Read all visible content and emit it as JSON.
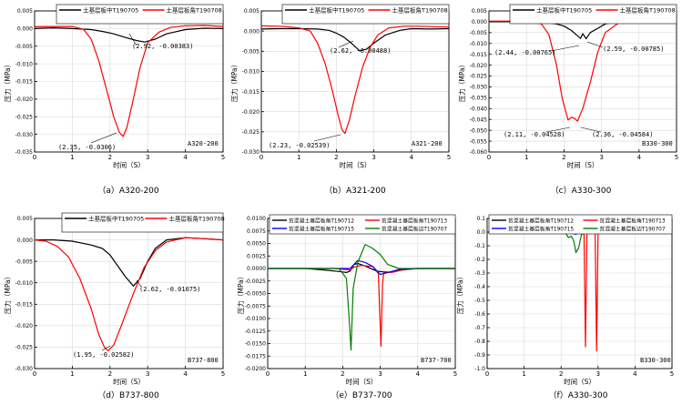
{
  "chart_data": [
    {
      "id": "a",
      "type": "line",
      "caption": "（a）A320-200",
      "tag": "A320-200",
      "xlabel": "时间（S）",
      "ylabel": "压力（MPa）",
      "xlim": [
        0,
        5
      ],
      "ylim": [
        -0.035,
        0.005
      ],
      "xticks": [
        0,
        1,
        2,
        3,
        4,
        5
      ],
      "yticks": [
        0.005,
        0.0,
        -0.005,
        -0.01,
        -0.015,
        -0.02,
        -0.025,
        -0.03,
        -0.035
      ],
      "ytick_labels": [
        "0.005",
        "0.000",
        "-0.005",
        "-0.010",
        "-0.015",
        "-0.020",
        "-0.025",
        "-0.030",
        "-0.035"
      ],
      "legend": [
        "土基层板中T190705",
        "土基层板角T190708"
      ],
      "series": [
        {
          "name": "土基层板中T190705",
          "color": "#000000",
          "x": [
            0,
            0.5,
            1.0,
            1.5,
            1.8,
            2.1,
            2.4,
            2.7,
            2.92,
            3.2,
            3.5,
            4.0,
            4.5,
            5.0
          ],
          "y": [
            0.0,
            0.0002,
            0.0,
            -0.0003,
            -0.0008,
            -0.0015,
            -0.0025,
            -0.0034,
            -0.00383,
            -0.003,
            -0.0015,
            -0.0003,
            0.0001,
            0.0
          ]
        },
        {
          "name": "土基层板角T190708",
          "color": "#ff0000",
          "x": [
            0,
            0.5,
            1.0,
            1.3,
            1.5,
            1.7,
            1.9,
            2.1,
            2.25,
            2.35,
            2.45,
            2.6,
            2.8,
            3.0,
            3.3,
            3.6,
            4.0,
            4.5,
            5.0
          ],
          "y": [
            0.0005,
            0.0006,
            0.0006,
            -0.0002,
            -0.003,
            -0.009,
            -0.017,
            -0.025,
            -0.0295,
            -0.0306,
            -0.028,
            -0.021,
            -0.011,
            -0.004,
            -0.001,
            0.0003,
            0.0008,
            0.0009,
            0.0006
          ]
        }
      ],
      "annotations": [
        {
          "text": "(2.92, -0.00383)",
          "x": 2.92,
          "y": -0.00383
        },
        {
          "text": "(2.35, -0.0306)",
          "x": 2.35,
          "y": -0.0306
        }
      ]
    },
    {
      "id": "b",
      "type": "line",
      "caption": "（b）A321-200",
      "tag": "A321-200",
      "xlabel": "时间（S）",
      "ylabel": "压力（MPa）",
      "xlim": [
        0,
        5
      ],
      "ylim": [
        -0.03,
        0.005
      ],
      "xticks": [
        0,
        1,
        2,
        3,
        4,
        5
      ],
      "yticks": [
        0.005,
        0.0,
        -0.005,
        -0.01,
        -0.015,
        -0.02,
        -0.025,
        -0.03
      ],
      "ytick_labels": [
        "0.005",
        "0.000",
        "-0.005",
        "-0.010",
        "-0.015",
        "-0.020",
        "-0.025",
        "-0.030"
      ],
      "legend": [
        "土基层板中T190705",
        "土基层板角T190708"
      ],
      "series": [
        {
          "name": "土基层板中T190705",
          "color": "#000000",
          "x": [
            0,
            0.5,
            1.0,
            1.5,
            1.8,
            2.0,
            2.2,
            2.4,
            2.62,
            2.8,
            3.0,
            3.3,
            3.7,
            4.0,
            4.5,
            5.0
          ],
          "y": [
            0.0005,
            0.0006,
            0.0006,
            0.0005,
            0.0002,
            -0.0005,
            -0.0015,
            -0.003,
            -0.00488,
            -0.0045,
            -0.003,
            -0.001,
            0.0002,
            0.0006,
            0.0005,
            0.0006
          ]
        },
        {
          "name": "土基层板角T190708",
          "color": "#ff0000",
          "x": [
            0,
            0.5,
            1.0,
            1.3,
            1.5,
            1.7,
            1.9,
            2.05,
            2.15,
            2.23,
            2.35,
            2.5,
            2.7,
            2.9,
            3.1,
            3.4,
            3.8,
            4.2,
            4.6,
            5.0
          ],
          "y": [
            0.0013,
            0.0012,
            0.0008,
            0.0,
            -0.003,
            -0.008,
            -0.015,
            -0.021,
            -0.0245,
            -0.02539,
            -0.022,
            -0.016,
            -0.009,
            -0.004,
            -0.001,
            0.0008,
            0.0012,
            0.0012,
            0.0011,
            0.001
          ]
        }
      ],
      "annotations": [
        {
          "text": "(2.62, -0.00488)",
          "x": 2.62,
          "y": -0.00488
        },
        {
          "text": "(2.23, -0.02539)",
          "x": 2.23,
          "y": -0.02539
        }
      ]
    },
    {
      "id": "c",
      "type": "line",
      "caption": "（c）A330-300",
      "tag": "B330-300",
      "xlabel": "时间（S）",
      "ylabel": "压力（MPa）",
      "xlim": [
        0,
        5
      ],
      "ylim": [
        -0.06,
        0.005
      ],
      "xticks": [
        0,
        1,
        2,
        3,
        4,
        5
      ],
      "yticks": [
        0.005,
        0.0,
        -0.005,
        -0.01,
        -0.015,
        -0.02,
        -0.025,
        -0.03,
        -0.035,
        -0.04,
        -0.045,
        -0.05,
        -0.055,
        -0.06
      ],
      "ytick_labels": [
        "0.005",
        "0.000",
        "-0.005",
        "-0.010",
        "-0.015",
        "-0.020",
        "-0.025",
        "-0.030",
        "-0.035",
        "-0.040",
        "-0.045",
        "-0.050",
        "-0.055",
        "-0.060"
      ],
      "legend": [
        "土基层板中T190705",
        "土基层板角T190708"
      ],
      "series": [
        {
          "name": "土基层板中T190705",
          "color": "#000000",
          "x": [
            0,
            1.0,
            1.5,
            1.8,
            2.0,
            2.2,
            2.44,
            2.5,
            2.59,
            2.7,
            2.9,
            3.1,
            3.4,
            4.0,
            5.0
          ],
          "y": [
            0.0,
            0.0,
            -0.0003,
            -0.001,
            -0.002,
            -0.004,
            -0.00765,
            -0.0055,
            -0.00785,
            -0.005,
            -0.003,
            -0.001,
            0.0,
            0.0,
            0.0
          ]
        },
        {
          "name": "土基层板角T190708",
          "color": "#ff0000",
          "x": [
            0,
            1.0,
            1.4,
            1.6,
            1.8,
            1.95,
            2.11,
            2.2,
            2.28,
            2.36,
            2.5,
            2.7,
            2.9,
            3.1,
            3.5,
            4.0,
            5.0
          ],
          "y": [
            0.0003,
            0.0003,
            -0.001,
            -0.006,
            -0.02,
            -0.035,
            -0.04528,
            -0.044,
            -0.0445,
            -0.04584,
            -0.04,
            -0.028,
            -0.014,
            -0.005,
            0.0,
            0.0003,
            0.0003
          ]
        }
      ],
      "annotations": [
        {
          "text": "(2.44, -0.00765)",
          "x": 2.44,
          "y": -0.00765
        },
        {
          "text": "(2.59, -0.00785)",
          "x": 2.59,
          "y": -0.00785
        },
        {
          "text": "(2.11, -0.04528)",
          "x": 2.11,
          "y": -0.04528
        },
        {
          "text": "(2.36, -0.04584)",
          "x": 2.36,
          "y": -0.04584
        }
      ]
    },
    {
      "id": "d",
      "type": "line",
      "caption": "（d）B737-800",
      "tag": "B737-800",
      "xlabel": "时间（S）",
      "ylabel": "压力（MPa）",
      "xlim": [
        0,
        5
      ],
      "ylim": [
        -0.03,
        0.005
      ],
      "xticks": [
        0,
        1,
        2,
        3,
        4,
        5
      ],
      "yticks": [
        0.005,
        0.0,
        -0.005,
        -0.01,
        -0.015,
        -0.02,
        -0.025,
        -0.03
      ],
      "ytick_labels": [
        "0.005",
        "0.000",
        "-0.005",
        "-0.010",
        "-0.015",
        "-0.020",
        "-0.025",
        "-0.030"
      ],
      "legend": [
        "土基层板中T190705",
        "土基层板角T190708"
      ],
      "series": [
        {
          "name": "土基层板中T190705",
          "color": "#000000",
          "x": [
            0,
            0.5,
            1.0,
            1.5,
            1.8,
            2.0,
            2.2,
            2.4,
            2.62,
            2.8,
            3.0,
            3.2,
            3.5,
            4.0,
            4.5,
            5.0
          ],
          "y": [
            0.0,
            0.0,
            -0.0003,
            -0.0012,
            -0.002,
            -0.0035,
            -0.006,
            -0.0085,
            -0.01075,
            -0.009,
            -0.005,
            -0.002,
            0.0,
            0.0005,
            0.0003,
            0.0
          ]
        },
        {
          "name": "土基层板角T190708",
          "color": "#ff0000",
          "x": [
            0,
            0.3,
            0.6,
            0.9,
            1.2,
            1.5,
            1.7,
            1.85,
            1.95,
            2.1,
            2.3,
            2.6,
            2.9,
            3.2,
            3.5,
            4.0,
            4.5,
            5.0
          ],
          "y": [
            0.0,
            -0.0003,
            -0.0015,
            -0.004,
            -0.009,
            -0.016,
            -0.022,
            -0.025,
            -0.02582,
            -0.0245,
            -0.02,
            -0.013,
            -0.0065,
            -0.0025,
            -0.0005,
            0.0005,
            0.0003,
            0.0
          ]
        }
      ],
      "annotations": [
        {
          "text": "(2.62, -0.01075)",
          "x": 2.62,
          "y": -0.01075
        },
        {
          "text": "(1.95, -0.02582)",
          "x": 1.95,
          "y": -0.02582
        }
      ]
    },
    {
      "id": "e",
      "type": "line",
      "caption": "（e）B737-700",
      "tag": "B737-700",
      "xlabel": "时间（S）",
      "ylabel": "压力（MPa）",
      "xlim": [
        0,
        5
      ],
      "ylim": [
        -0.02,
        0.01
      ],
      "xticks": [
        0,
        1,
        2,
        3,
        4,
        5
      ],
      "yticks": [
        0.01,
        0.0075,
        0.005,
        0.0025,
        0.0,
        -0.0025,
        -0.005,
        -0.0075,
        -0.01,
        -0.0125,
        -0.015,
        -0.0175,
        -0.02
      ],
      "ytick_labels": [
        "0.0100",
        "0.0075",
        "0.0050",
        "0.0025",
        "0.0000",
        "-0.0025",
        "-0.0050",
        "-0.0075",
        "-0.0100",
        "-0.0125",
        "-0.0150",
        "-0.0175",
        "-0.0200"
      ],
      "legend": [
        "贫混凝土基层板角T190712",
        "贫混凝土基层板角T190713",
        "贫混凝土基层板角T190715",
        "贫混凝土基层板边T190707"
      ],
      "series": [
        {
          "name": "贫混凝土基层板角T190712",
          "color": "#000000",
          "x": [
            0,
            1.0,
            1.5,
            1.9,
            2.1,
            2.2,
            2.3,
            2.4,
            2.6,
            2.9,
            3.2,
            3.6,
            4.0,
            5.0
          ],
          "y": [
            0.0,
            0.0,
            -0.0003,
            -0.0006,
            -0.0008,
            -0.0005,
            0.0008,
            0.001,
            0.0005,
            -0.0005,
            -0.0008,
            -0.0002,
            0.0,
            0.0
          ]
        },
        {
          "name": "贫混凝土基层板角T190713",
          "color": "#ff0000",
          "x": [
            0,
            1.0,
            1.8,
            2.2,
            2.3,
            2.5,
            2.8,
            2.95,
            3.02,
            3.06,
            3.1,
            3.3,
            3.6,
            4.0,
            5.0
          ],
          "y": [
            0.0,
            0.0,
            0.0,
            -0.0003,
            0.0003,
            0.0006,
            0.0004,
            -0.001,
            -0.0155,
            -0.003,
            -0.0006,
            -0.0008,
            -0.0003,
            0.0,
            0.0
          ]
        },
        {
          "name": "贫混凝土基层板角T190715",
          "color": "#0000ff",
          "x": [
            0,
            1.0,
            1.8,
            2.2,
            2.4,
            2.6,
            2.8,
            3.0,
            3.2,
            3.5,
            4.0,
            5.0
          ],
          "y": [
            0.0,
            0.0,
            0.0,
            0.0,
            0.0016,
            0.0012,
            0.0004,
            -0.0012,
            -0.0008,
            -0.0002,
            0.0,
            0.0
          ]
        },
        {
          "name": "贫混凝土基层板边T190707",
          "color": "#008000",
          "x": [
            0,
            1.0,
            1.9,
            2.1,
            2.18,
            2.22,
            2.28,
            2.4,
            2.6,
            2.8,
            3.0,
            3.2,
            3.5,
            4.0,
            5.0
          ],
          "y": [
            0.0,
            0.0,
            0.0,
            -0.002,
            -0.011,
            -0.0163,
            -0.004,
            0.0012,
            0.0048,
            0.004,
            0.0028,
            0.0008,
            0.0,
            0.0,
            0.0
          ]
        }
      ],
      "annotations": []
    },
    {
      "id": "f",
      "type": "line",
      "caption": "（f）A330-300",
      "tag": "B330-300",
      "xlabel": "时间（S）",
      "ylabel": "压力（MPa）",
      "xlim": [
        0,
        5
      ],
      "ylim": [
        -1.0,
        0.1
      ],
      "xticks": [
        0,
        1,
        2,
        3,
        4,
        5
      ],
      "yticks": [
        0.1,
        0.0,
        -0.1,
        -0.2,
        -0.3,
        -0.4,
        -0.5,
        -0.6,
        -0.7,
        -0.8,
        -0.9,
        -1.0
      ],
      "ytick_labels": [
        "0.1",
        "0.0",
        "-0.1",
        "-0.2",
        "-0.3",
        "-0.4",
        "-0.5",
        "-0.6",
        "-0.7",
        "-0.8",
        "-0.9",
        "-1.0"
      ],
      "legend": [
        "贫混凝土基层板角T190712",
        "贫混凝土基层板角T190713",
        "贫混凝土基层板角T190715",
        "贫混凝土基层板边T190707"
      ],
      "series": [
        {
          "name": "贫混凝土基层板角T190712",
          "color": "#000000",
          "x": [
            0,
            1.0,
            2.0,
            3.0,
            4.0,
            4.7
          ],
          "y": [
            0.0,
            0.0,
            0.0,
            0.0,
            0.0,
            0.0
          ]
        },
        {
          "name": "贫混凝土基层板角T190713",
          "color": "#ff0000",
          "x": [
            0,
            2.5,
            2.62,
            2.66,
            2.7,
            2.8,
            2.92,
            2.96,
            3.0,
            3.1,
            4.7
          ],
          "y": [
            0.0,
            0.0,
            -0.01,
            -0.84,
            -0.01,
            0.0,
            -0.01,
            -0.87,
            -0.01,
            0.0,
            0.0
          ]
        },
        {
          "name": "贫混凝土基层板角T190715",
          "color": "#0000ff",
          "x": [
            0,
            2.2,
            2.3,
            2.4,
            2.5,
            2.6,
            4.7
          ],
          "y": [
            0.0,
            0.0,
            -0.01,
            -0.015,
            -0.005,
            0.0,
            0.0
          ]
        },
        {
          "name": "贫混凝土基层板边T190707",
          "color": "#008000",
          "x": [
            0,
            2.1,
            2.2,
            2.28,
            2.35,
            2.4,
            2.47,
            2.55,
            2.65,
            4.7
          ],
          "y": [
            0.0,
            0.0,
            -0.04,
            -0.03,
            -0.07,
            -0.15,
            -0.12,
            -0.02,
            0.0,
            0.0
          ]
        }
      ],
      "annotations": []
    }
  ]
}
